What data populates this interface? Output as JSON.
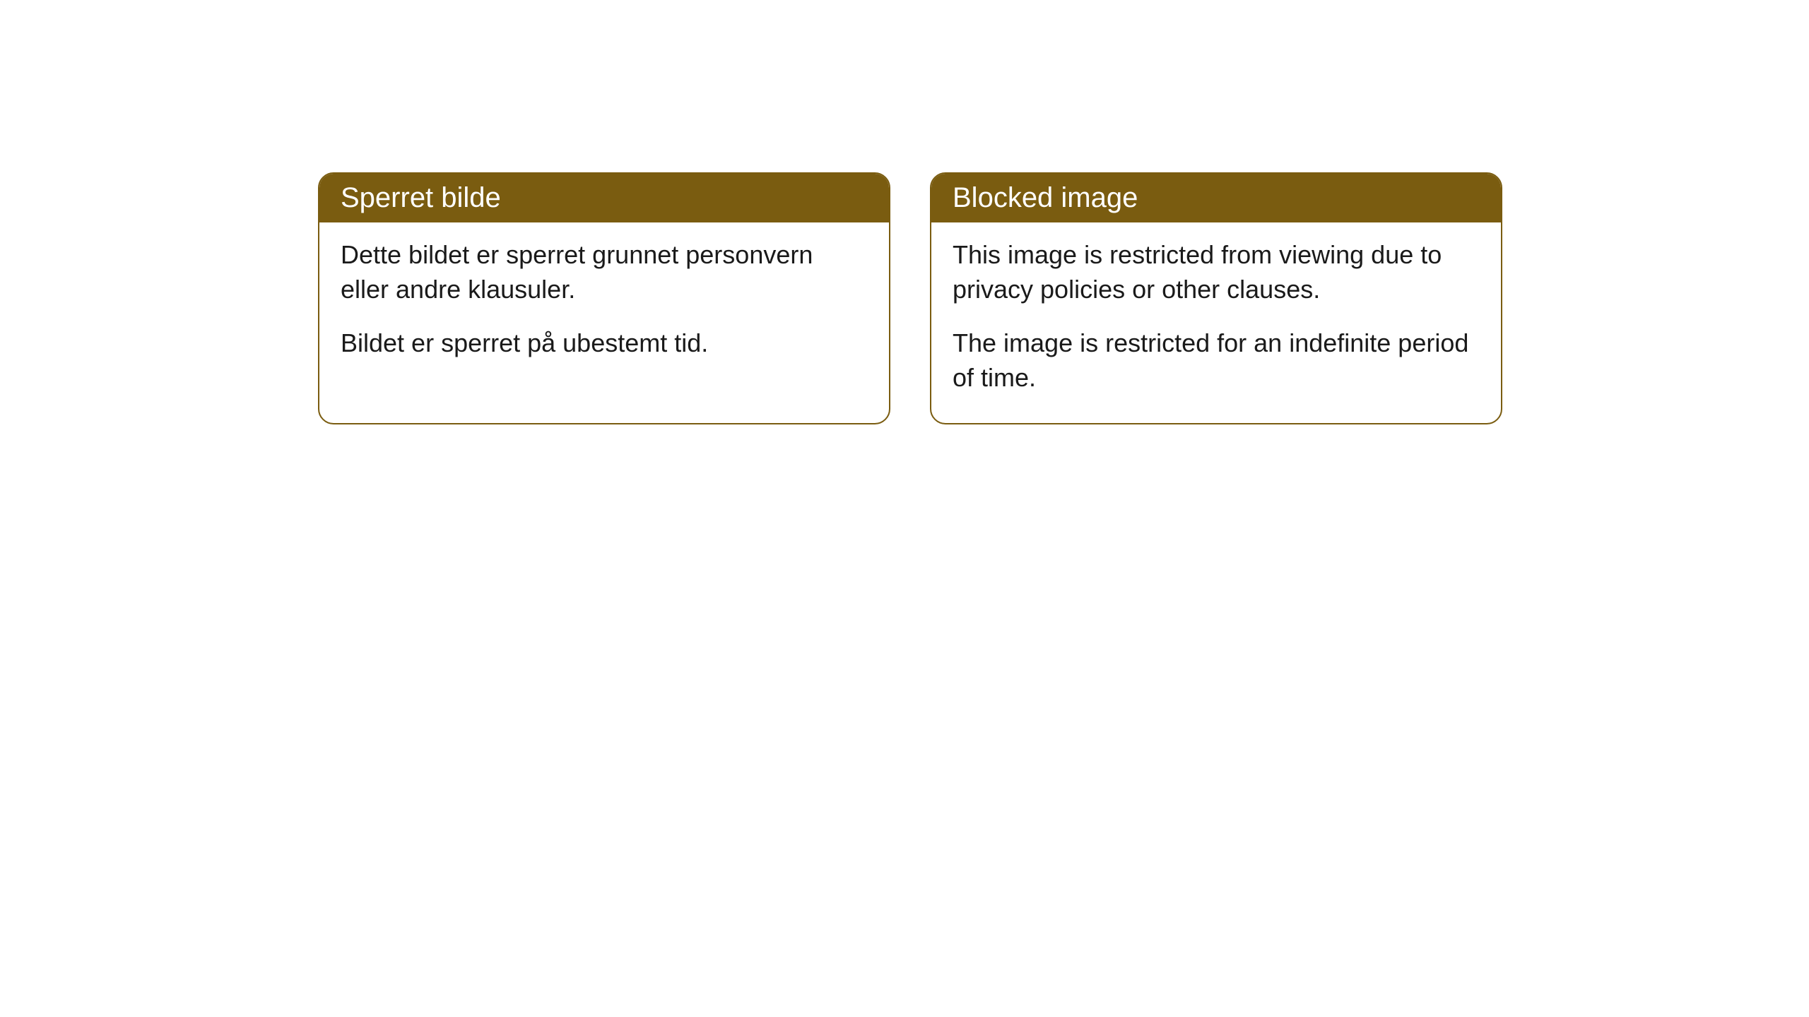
{
  "cards": [
    {
      "title": "Sperret bilde",
      "paragraph1": "Dette bildet er sperret grunnet personvern eller andre klausuler.",
      "paragraph2": "Bildet er sperret på ubestemt tid."
    },
    {
      "title": "Blocked image",
      "paragraph1": "This image is restricted from viewing due to privacy policies or other clauses.",
      "paragraph2": "The image is restricted for an indefinite period of time."
    }
  ],
  "styling": {
    "header_background": "#7a5c10",
    "header_text_color": "#ffffff",
    "border_color": "#7a5c10",
    "body_background": "#ffffff",
    "body_text_color": "#1a1a1a",
    "border_radius": "22px",
    "title_fontsize": 40,
    "body_fontsize": 36
  }
}
